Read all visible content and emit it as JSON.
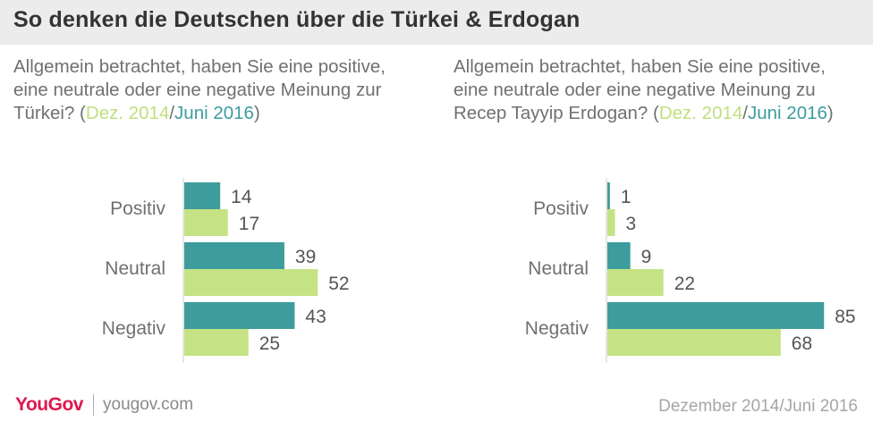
{
  "header": {
    "title": "So denken die Deutschen über die Türkei & Erdogan"
  },
  "legend": {
    "dez": "Dez. 2014",
    "sep": "/",
    "juni": "Juni 2016"
  },
  "questions": {
    "left": "Allgemein betrachtet, haben Sie eine positive, eine neutrale oder eine negative Meinung zur Türkei? (",
    "right": "Allgemein betrachtet, haben Sie eine positive, eine neutrale oder eine negative Meinung zu Recep Tayyip Erdogan? ("
  },
  "footer": {
    "logo": "YouGov",
    "url": "yougov.com",
    "date": "Dezember 2014/Juni 2016"
  },
  "colors": {
    "dez_2014": "#c5e384",
    "juni_2016": "#3e9c9c",
    "label": "#707070",
    "value": "#555555"
  },
  "chart_data": [
    {
      "type": "bar",
      "orientation": "horizontal",
      "categories": [
        "Positiv",
        "Neutral",
        "Negativ"
      ],
      "series": [
        {
          "name": "Juni 2016",
          "values": [
            14,
            39,
            43
          ]
        },
        {
          "name": "Dez. 2014",
          "values": [
            17,
            52,
            25
          ]
        }
      ]
    },
    {
      "type": "bar",
      "orientation": "horizontal",
      "categories": [
        "Positiv",
        "Neutral",
        "Negativ"
      ],
      "series": [
        {
          "name": "Juni 2016",
          "values": [
            1,
            9,
            85
          ]
        },
        {
          "name": "Dez. 2014",
          "values": [
            3,
            22,
            68
          ]
        }
      ]
    }
  ]
}
